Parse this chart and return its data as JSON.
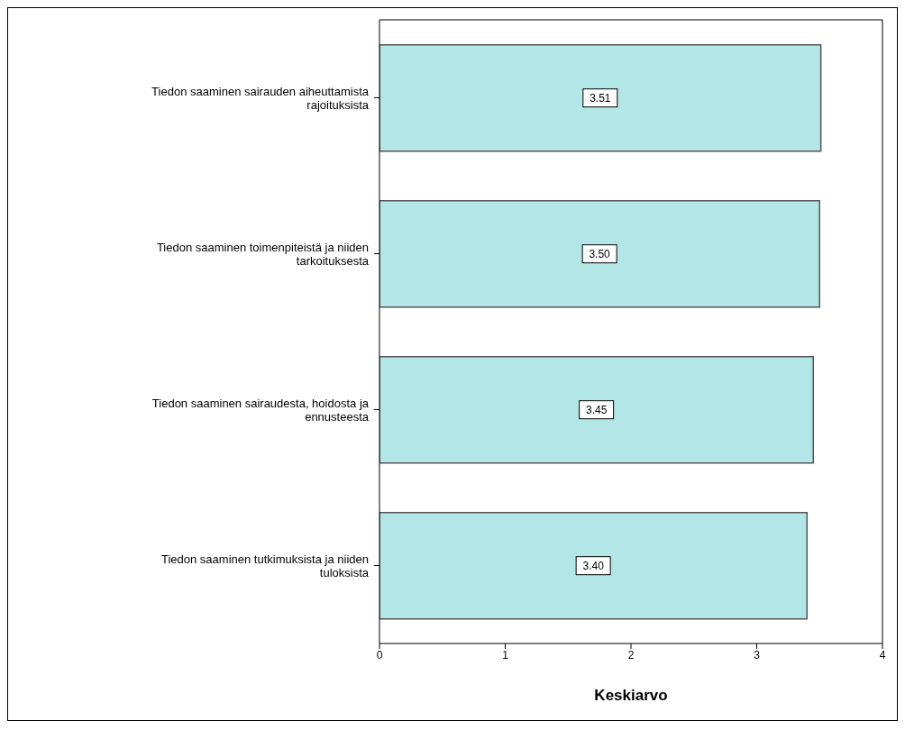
{
  "chart_data": {
    "type": "bar",
    "orientation": "horizontal",
    "xlabel": "Keskiarvo",
    "categories": [
      "Tiedon saaminen sairauden aiheuttamista rajoituksista",
      "Tiedon saaminen toimenpiteistä ja niiden tarkoituksesta",
      "Tiedon saaminen sairaudesta, hoidosta ja ennusteesta",
      "Tiedon saaminen tutkimuksista ja niiden tuloksista"
    ],
    "values": [
      3.51,
      3.5,
      3.45,
      3.4
    ],
    "color": "#b3e6e6",
    "value_labels": [
      "3.51",
      "3.50",
      "3.45",
      "3.40"
    ],
    "xlim": [
      0,
      4
    ],
    "xticks": [
      0,
      1,
      2,
      3,
      4
    ],
    "grid": false,
    "legend": false
  }
}
